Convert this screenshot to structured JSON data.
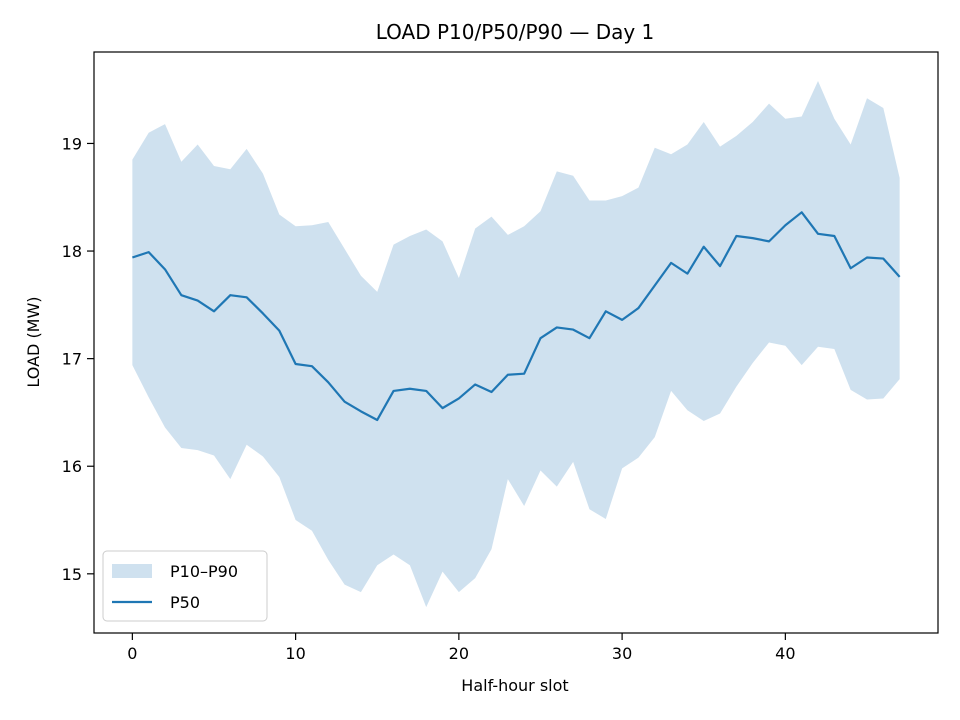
{
  "chart_data": {
    "type": "area",
    "title": "LOAD P10/P50/P90 — Day 1",
    "xlabel": "Half-hour slot",
    "ylabel": "LOAD (MW)",
    "xlim": [
      -2.35,
      49.35
    ],
    "ylim": [
      14.45,
      19.85
    ],
    "xticks": [
      0,
      10,
      20,
      30,
      40
    ],
    "yticks": [
      15,
      16,
      17,
      18,
      19
    ],
    "grid": false,
    "legend_position": "bottom-left",
    "x": [
      0,
      1,
      2,
      3,
      4,
      5,
      6,
      7,
      8,
      9,
      10,
      11,
      12,
      13,
      14,
      15,
      16,
      17,
      18,
      19,
      20,
      21,
      22,
      23,
      24,
      25,
      26,
      27,
      28,
      29,
      30,
      31,
      32,
      33,
      34,
      35,
      36,
      37,
      38,
      39,
      40,
      41,
      42,
      43,
      44,
      45,
      46,
      47
    ],
    "band": {
      "name": "P10–P90",
      "color": "#cfe1ef",
      "upper": [
        18.85,
        19.1,
        19.18,
        18.83,
        18.99,
        18.79,
        18.76,
        18.95,
        18.72,
        18.34,
        18.23,
        18.24,
        18.27,
        18.02,
        17.77,
        17.62,
        18.06,
        18.14,
        18.2,
        18.09,
        17.75,
        18.21,
        18.32,
        18.15,
        18.23,
        18.37,
        18.74,
        18.7,
        18.47,
        18.47,
        18.51,
        18.59,
        18.96,
        18.9,
        18.99,
        19.2,
        18.97,
        19.07,
        19.2,
        19.37,
        19.23,
        19.25,
        19.58,
        19.23,
        18.99,
        19.42,
        19.33,
        18.68
      ],
      "lower": [
        16.94,
        16.64,
        16.36,
        16.17,
        16.15,
        16.1,
        15.88,
        16.2,
        16.09,
        15.9,
        15.5,
        15.4,
        15.13,
        14.9,
        14.83,
        15.08,
        15.18,
        15.08,
        14.69,
        15.02,
        14.83,
        14.96,
        15.23,
        15.88,
        15.63,
        15.96,
        15.81,
        16.04,
        15.6,
        15.51,
        15.98,
        16.08,
        16.27,
        16.7,
        16.52,
        16.42,
        16.49,
        16.74,
        16.96,
        17.15,
        17.12,
        16.94,
        17.11,
        17.09,
        16.71,
        16.62,
        16.63,
        16.81
      ]
    },
    "series": [
      {
        "name": "P50",
        "color": "#1f77b4",
        "values": [
          17.94,
          17.99,
          17.83,
          17.59,
          17.54,
          17.44,
          17.59,
          17.57,
          17.42,
          17.26,
          16.95,
          16.93,
          16.78,
          16.6,
          16.51,
          16.43,
          16.7,
          16.72,
          16.7,
          16.54,
          16.63,
          16.76,
          16.69,
          16.85,
          16.86,
          17.19,
          17.29,
          17.27,
          17.19,
          17.44,
          17.36,
          17.47,
          17.68,
          17.89,
          17.79,
          18.04,
          17.86,
          18.14,
          18.12,
          18.09,
          18.24,
          18.36,
          18.16,
          18.14,
          17.84,
          17.94,
          17.93,
          17.76
        ]
      }
    ]
  }
}
